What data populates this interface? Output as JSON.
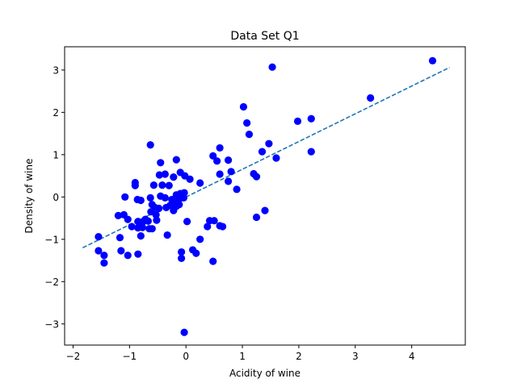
{
  "chart_data": {
    "type": "scatter",
    "title": "Data Set Q1",
    "xlabel": "Acidity of wine",
    "ylabel": "Density of wine",
    "xlim": [
      -2.15,
      4.95
    ],
    "ylim": [
      -3.5,
      3.55
    ],
    "xticks": [
      -2,
      -1,
      0,
      1,
      2,
      3,
      4
    ],
    "yticks": [
      -3,
      -2,
      -1,
      0,
      1,
      2,
      3
    ],
    "grid": false,
    "legend": "none",
    "series": [
      {
        "kind": "points",
        "color": "#0000ff",
        "marker": "circle",
        "points": [
          [
            -0.63,
            1.23
          ],
          [
            -0.45,
            0.81
          ],
          [
            -0.17,
            0.88
          ],
          [
            -0.9,
            0.34
          ],
          [
            -0.9,
            0.27
          ],
          [
            -0.47,
            0.52
          ],
          [
            -0.37,
            0.54
          ],
          [
            -0.22,
            0.47
          ],
          [
            -0.1,
            0.58
          ],
          [
            -0.02,
            0.5
          ],
          [
            0.07,
            0.42
          ],
          [
            0.25,
            0.33
          ],
          [
            -0.57,
            0.28
          ],
          [
            -0.42,
            0.28
          ],
          [
            -0.3,
            0.27
          ],
          [
            -0.17,
            0.05
          ],
          [
            -0.1,
            0.08
          ],
          [
            -0.03,
            0.1
          ],
          [
            -1.08,
            0.0
          ],
          [
            -0.86,
            -0.06
          ],
          [
            -0.8,
            -0.08
          ],
          [
            -0.63,
            -0.02
          ],
          [
            -0.45,
            0.02
          ],
          [
            -0.37,
            -0.02
          ],
          [
            -0.25,
            -0.06
          ],
          [
            -0.2,
            -0.1
          ],
          [
            -0.1,
            -0.03
          ],
          [
            -0.04,
            -0.02
          ],
          [
            -0.6,
            -0.18
          ],
          [
            -0.55,
            -0.25
          ],
          [
            -0.48,
            -0.27
          ],
          [
            -0.62,
            -0.35
          ],
          [
            -0.53,
            -0.42
          ],
          [
            -0.35,
            -0.25
          ],
          [
            -0.28,
            -0.2
          ],
          [
            -0.22,
            -0.32
          ],
          [
            -0.17,
            -0.22
          ],
          [
            -0.12,
            -0.18
          ],
          [
            -1.2,
            -0.44
          ],
          [
            -1.1,
            -0.42
          ],
          [
            -1.03,
            -0.53
          ],
          [
            -0.85,
            -0.58
          ],
          [
            -0.77,
            -0.6
          ],
          [
            -0.72,
            -0.53
          ],
          [
            -0.67,
            -0.57
          ],
          [
            -0.52,
            -0.55
          ],
          [
            -0.96,
            -0.7
          ],
          [
            -0.85,
            -0.73
          ],
          [
            -0.77,
            -0.72
          ],
          [
            -0.65,
            -0.75
          ],
          [
            -0.6,
            -0.75
          ],
          [
            -0.8,
            -0.92
          ],
          [
            -0.33,
            -0.9
          ],
          [
            -1.17,
            -0.96
          ],
          [
            -1.55,
            -0.94
          ],
          [
            0.02,
            -0.58
          ],
          [
            0.42,
            -0.56
          ],
          [
            0.5,
            -0.56
          ],
          [
            0.38,
            -0.7
          ],
          [
            0.6,
            -0.68
          ],
          [
            0.65,
            -0.7
          ],
          [
            0.25,
            -1.0
          ],
          [
            -0.08,
            -1.3
          ],
          [
            -0.08,
            -1.45
          ],
          [
            0.12,
            -1.25
          ],
          [
            0.18,
            -1.33
          ],
          [
            0.48,
            -1.52
          ],
          [
            -1.55,
            -1.27
          ],
          [
            -1.45,
            -1.38
          ],
          [
            -1.45,
            -1.56
          ],
          [
            -1.15,
            -1.27
          ],
          [
            -1.03,
            -1.38
          ],
          [
            -0.85,
            -1.35
          ],
          [
            -0.03,
            -3.2
          ],
          [
            0.48,
            0.97
          ],
          [
            0.55,
            0.85
          ],
          [
            0.6,
            1.16
          ],
          [
            0.75,
            0.87
          ],
          [
            0.6,
            0.54
          ],
          [
            0.75,
            0.37
          ],
          [
            0.8,
            0.6
          ],
          [
            0.9,
            0.18
          ],
          [
            1.02,
            2.13
          ],
          [
            1.08,
            1.75
          ],
          [
            1.12,
            1.48
          ],
          [
            1.2,
            0.55
          ],
          [
            1.25,
            0.48
          ],
          [
            1.35,
            1.07
          ],
          [
            1.47,
            1.26
          ],
          [
            1.6,
            0.92
          ],
          [
            1.53,
            3.07
          ],
          [
            1.25,
            -0.48
          ],
          [
            1.4,
            -0.32
          ],
          [
            1.98,
            1.79
          ],
          [
            2.22,
            1.85
          ],
          [
            2.22,
            1.07
          ],
          [
            3.27,
            2.34
          ],
          [
            4.37,
            3.22
          ]
        ]
      },
      {
        "kind": "trend-line",
        "color": "#1f77b4",
        "style": "dashed",
        "from": [
          -1.83,
          -1.2
        ],
        "to": [
          4.67,
          3.06
        ]
      }
    ]
  }
}
